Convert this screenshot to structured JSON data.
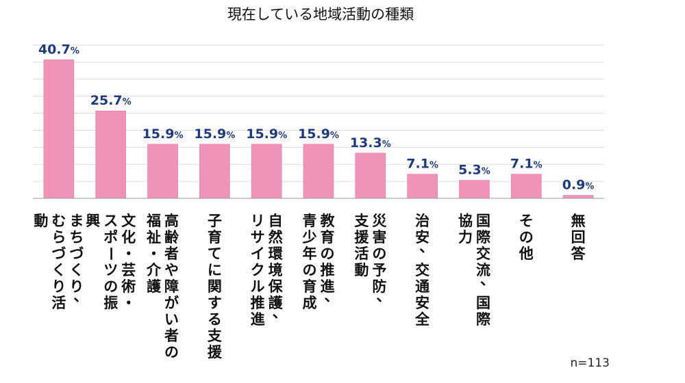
{
  "chart_data": {
    "type": "bar",
    "title": "現在している地域活動の種類",
    "categories": [
      [
        "まちづくり、",
        "むらづくり活",
        "動"
      ],
      [
        "文化・芸術・",
        "スポーツの振",
        "興"
      ],
      [
        "高齢者や障がい者の",
        "福祉・介護"
      ],
      [
        "子育てに関する支援"
      ],
      [
        "自然環境保護、",
        "リサイクル推進"
      ],
      [
        "教育の推進、",
        "青少年の育成"
      ],
      [
        "災害の予防、",
        "支援活動"
      ],
      [
        "治安、交通安全"
      ],
      [
        "国際交流、国際",
        "協力"
      ],
      [
        "その他"
      ],
      [
        "無回答"
      ]
    ],
    "values": [
      40.7,
      25.7,
      15.9,
      15.9,
      15.9,
      15.9,
      13.3,
      7.1,
      5.3,
      7.1,
      0.9
    ],
    "unit": "%",
    "ylim": [
      0,
      45
    ],
    "grid": true,
    "bar_color": "#ef94b8",
    "value_label_color": "#1f3a7a",
    "note": "n=113"
  }
}
